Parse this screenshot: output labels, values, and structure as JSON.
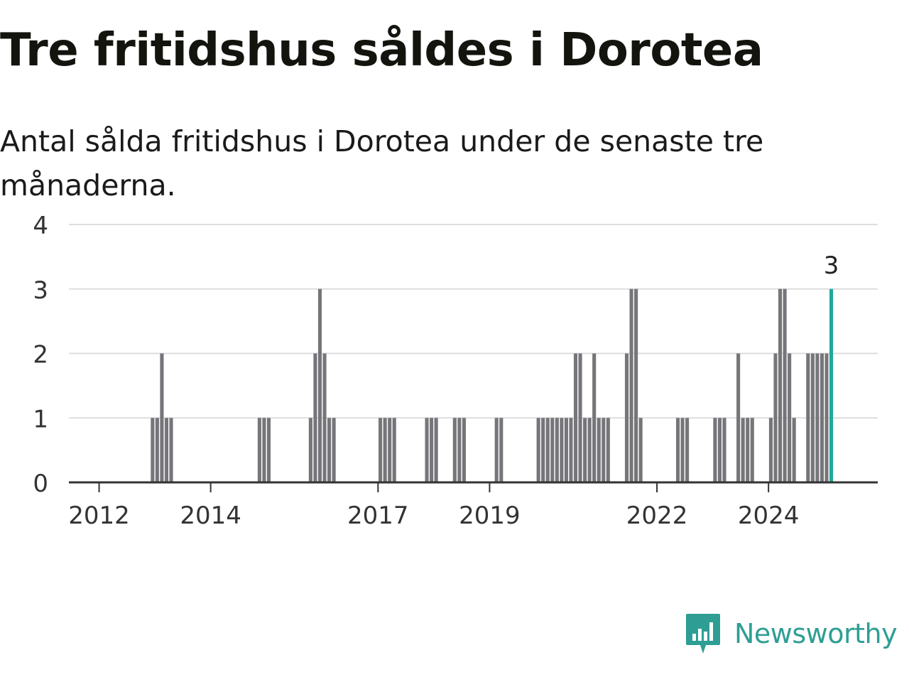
{
  "title": "Tre fritidshus såldes i Dorotea",
  "subtitle": "Antal sålda fritidshus i Dorotea under de senaste tre månaderna.",
  "brand": {
    "name": "Newsworthy",
    "icon": "bar-chart-speech-bubble-icon",
    "color": "#2e9e94"
  },
  "colors": {
    "bar": "#75757a",
    "highlight": "#1fa99b",
    "grid": "#dddddd",
    "axis": "#333333"
  },
  "chart_data": {
    "type": "bar",
    "title": "Tre fritidshus såldes i Dorotea",
    "subtitle": "Antal sålda fritidshus i Dorotea under de senaste tre månaderna.",
    "xlabel": "",
    "ylabel": "",
    "ylim": [
      0,
      4
    ],
    "yticks": [
      0,
      1,
      2,
      3,
      4
    ],
    "xlim": [
      "2011-06",
      "2025-12"
    ],
    "xticks": [
      "2012",
      "2014",
      "2017",
      "2019",
      "2022",
      "2024"
    ],
    "grid": true,
    "interval": "month",
    "series": [
      {
        "x": [
          "2012-12",
          "2013-01",
          "2013-02",
          "2013-03",
          "2013-04",
          "2014-11",
          "2014-12",
          "2015-01",
          "2015-10",
          "2015-11",
          "2015-12",
          "2016-01",
          "2016-02",
          "2016-03",
          "2017-01",
          "2017-02",
          "2017-03",
          "2017-04",
          "2017-11",
          "2017-12",
          "2018-01",
          "2018-05",
          "2018-06",
          "2018-07",
          "2019-02",
          "2019-03",
          "2019-11",
          "2019-12",
          "2020-01",
          "2020-02",
          "2020-03",
          "2020-04",
          "2020-05",
          "2020-06",
          "2020-07",
          "2020-08",
          "2020-09",
          "2020-10",
          "2020-11",
          "2020-12",
          "2021-01",
          "2021-02",
          "2021-06",
          "2021-07",
          "2021-08",
          "2021-09",
          "2022-05",
          "2022-06",
          "2022-07",
          "2023-01",
          "2023-02",
          "2023-03",
          "2023-06",
          "2023-07",
          "2023-08",
          "2023-09",
          "2024-01",
          "2024-02",
          "2024-03",
          "2024-04",
          "2024-05",
          "2024-06",
          "2024-09",
          "2024-10",
          "2024-11",
          "2024-12",
          "2025-01",
          "2025-02"
        ],
        "values": [
          1,
          1,
          2,
          1,
          1,
          1,
          1,
          1,
          1,
          2,
          3,
          2,
          1,
          1,
          1,
          1,
          1,
          1,
          1,
          1,
          1,
          1,
          1,
          1,
          1,
          1,
          1,
          1,
          1,
          1,
          1,
          1,
          1,
          1,
          2,
          2,
          1,
          1,
          2,
          1,
          1,
          1,
          2,
          3,
          3,
          1,
          1,
          1,
          1,
          1,
          1,
          1,
          2,
          1,
          1,
          1,
          1,
          2,
          3,
          3,
          2,
          1,
          2,
          2,
          2,
          2,
          2,
          3
        ]
      }
    ],
    "highlight": {
      "x": "2025-02",
      "value": 3,
      "label": "3"
    }
  }
}
